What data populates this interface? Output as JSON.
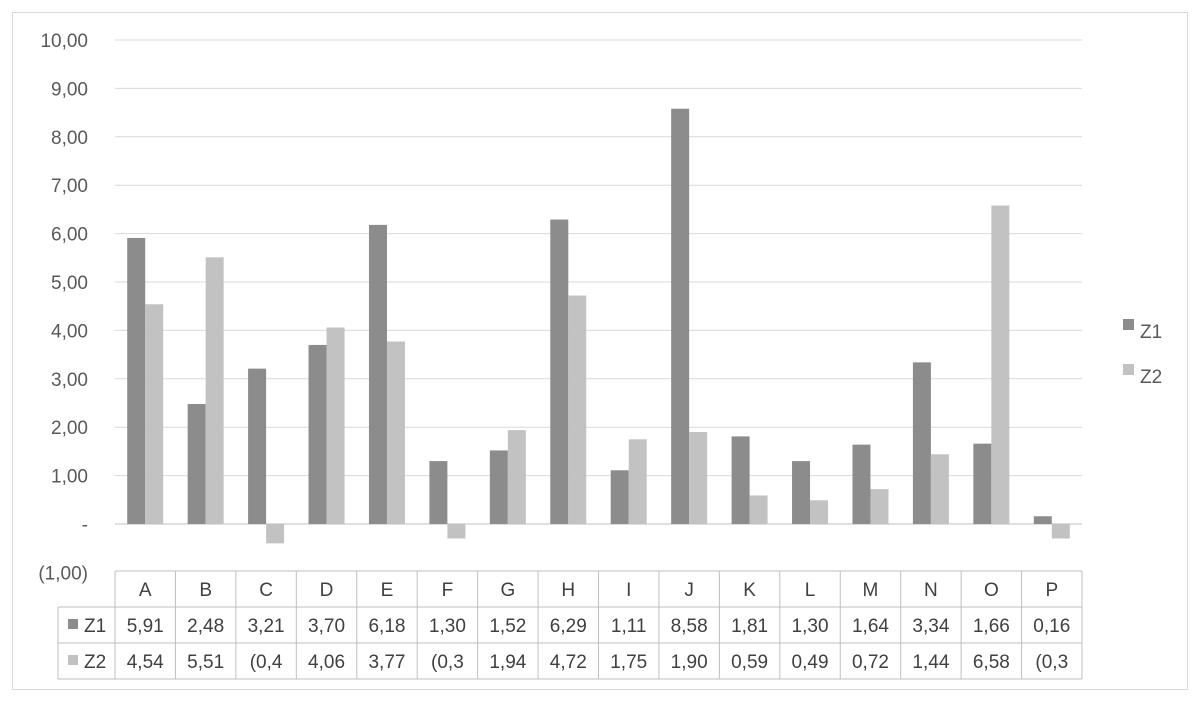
{
  "chart_data": {
    "type": "bar",
    "title": "",
    "xlabel": "",
    "ylabel": "",
    "ylim": [
      -1,
      10
    ],
    "y_ticks": [
      10,
      9,
      8,
      7,
      6,
      5,
      4,
      3,
      2,
      1,
      0,
      -1
    ],
    "y_tick_labels": [
      "10,00",
      "9,00",
      "8,00",
      "7,00",
      "6,00",
      "5,00",
      "4,00",
      "3,00",
      "2,00",
      "1,00",
      "-",
      "(1,00)"
    ],
    "grid": true,
    "legend_position": "right",
    "categories": [
      "A",
      "B",
      "C",
      "D",
      "E",
      "F",
      "G",
      "H",
      "I",
      "J",
      "K",
      "L",
      "M",
      "N",
      "O",
      "P"
    ],
    "series": [
      {
        "name": "Z1",
        "color": "#8c8c8c",
        "values": [
          5.91,
          2.48,
          3.21,
          3.7,
          6.18,
          1.3,
          1.52,
          6.29,
          1.11,
          8.58,
          1.81,
          1.3,
          1.64,
          3.34,
          1.66,
          0.16
        ],
        "table_labels": [
          "5,91",
          "2,48",
          "3,21",
          "3,70",
          "6,18",
          "1,30",
          "1,52",
          "6,29",
          "1,11",
          "8,58",
          "1,81",
          "1,30",
          "1,64",
          "3,34",
          "1,66",
          "0,16"
        ]
      },
      {
        "name": "Z2",
        "color": "#c2c2c2",
        "values": [
          4.54,
          5.51,
          -0.4,
          4.06,
          3.77,
          -0.3,
          1.94,
          4.72,
          1.75,
          1.9,
          0.59,
          0.49,
          0.72,
          1.44,
          6.58,
          -0.3
        ],
        "table_labels": [
          "4,54",
          "5,51",
          "(0,4",
          "4,06",
          "3,77",
          "(0,3",
          "1,94",
          "4,72",
          "1,75",
          "1,90",
          "0,59",
          "0,49",
          "0,72",
          "1,44",
          "6,58",
          "(0,3"
        ]
      }
    ]
  },
  "colors": {
    "grid": "#d9d9d9",
    "axis": "#bfbfbf",
    "text": "#595959"
  }
}
